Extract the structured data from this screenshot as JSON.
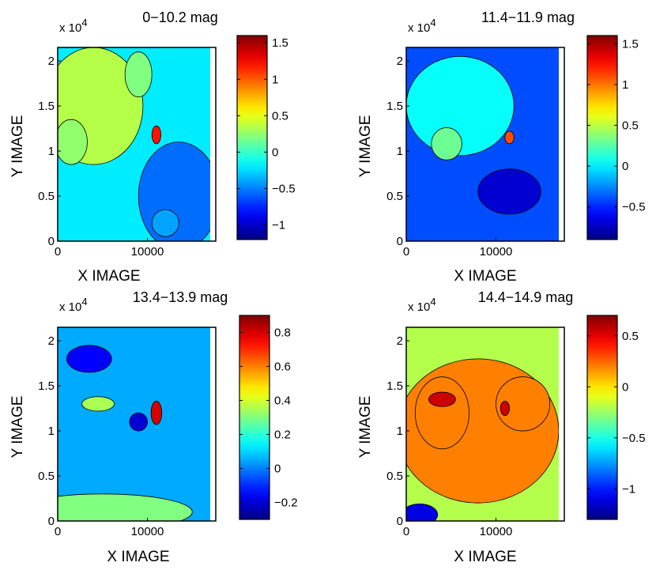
{
  "chart_data": [
    {
      "type": "heatmap",
      "plot_style": "filled-contour",
      "title": "0−10.2 mag",
      "xlabel": "X IMAGE",
      "ylabel": "Y IMAGE",
      "xlim": [
        0,
        17000
      ],
      "ylim": [
        0,
        21500
      ],
      "xticks": [
        "0",
        "10000"
      ],
      "yticks": [
        "0",
        "0.5",
        "1",
        "1.5",
        "2"
      ],
      "y_exponent_base": "x 10",
      "y_exponent_power": "4",
      "colorbar_range": [
        -1.2,
        1.6
      ],
      "colorbar_ticks": [
        "1.5",
        "1",
        "0.5",
        "0",
        "−0.5",
        "−1"
      ],
      "colorbar_tick_values": [
        1.5,
        1,
        0.5,
        0,
        -0.5,
        -1
      ],
      "background_value": -0.2,
      "features": [
        {
          "x": 4000,
          "y": 15000,
          "rx": 5500,
          "ry": 6500,
          "value": 0.35
        },
        {
          "x": 1500,
          "y": 11000,
          "rx": 1800,
          "ry": 2500,
          "value": 0.25
        },
        {
          "x": 9000,
          "y": 18500,
          "rx": 1500,
          "ry": 2500,
          "value": 0.2
        },
        {
          "x": 13500,
          "y": 5000,
          "rx": 4500,
          "ry": 6000,
          "value": -0.55
        },
        {
          "x": 12000,
          "y": 2000,
          "rx": 1500,
          "ry": 1500,
          "value": -0.4
        },
        {
          "x": 11000,
          "y": 11800,
          "rx": 500,
          "ry": 1000,
          "value": 1.2
        }
      ]
    },
    {
      "type": "heatmap",
      "plot_style": "filled-contour",
      "title": "11.4−11.9 mag",
      "xlabel": "X IMAGE",
      "ylabel": "Y IMAGE",
      "xlim": [
        0,
        17000
      ],
      "ylim": [
        0,
        21500
      ],
      "xticks": [
        "0",
        "10000"
      ],
      "yticks": [
        "0",
        "0.5",
        "1",
        "1.5",
        "2"
      ],
      "y_exponent_base": "x 10",
      "y_exponent_power": "4",
      "colorbar_range": [
        -0.9,
        1.6
      ],
      "colorbar_ticks": [
        "1.5",
        "1",
        "0.5",
        "0",
        "−0.5"
      ],
      "colorbar_tick_values": [
        1.5,
        1,
        0.5,
        0,
        -0.5
      ],
      "background_value": -0.4,
      "features": [
        {
          "x": 6000,
          "y": 15000,
          "rx": 6000,
          "ry": 5500,
          "value": 0.05
        },
        {
          "x": 4500,
          "y": 10800,
          "rx": 1700,
          "ry": 1800,
          "value": 0.3
        },
        {
          "x": 11500,
          "y": 5500,
          "rx": 3500,
          "ry": 2500,
          "value": -0.7
        },
        {
          "x": 11500,
          "y": 11500,
          "rx": 500,
          "ry": 700,
          "value": 1.1
        }
      ]
    },
    {
      "type": "heatmap",
      "plot_style": "filled-contour",
      "title": "13.4−13.9 mag",
      "xlabel": "X IMAGE",
      "ylabel": "Y IMAGE",
      "xlim": [
        0,
        17000
      ],
      "ylim": [
        0,
        21500
      ],
      "xticks": [
        "0",
        "10000"
      ],
      "yticks": [
        "0",
        "0.5",
        "1",
        "1.5",
        "2"
      ],
      "y_exponent_base": "x 10",
      "y_exponent_power": "4",
      "colorbar_range": [
        -0.3,
        0.9
      ],
      "colorbar_ticks": [
        "0.8",
        "0.6",
        "0.4",
        "0.2",
        "0",
        "−0.2"
      ],
      "colorbar_tick_values": [
        0.8,
        0.6,
        0.4,
        0.2,
        0,
        -0.2
      ],
      "background_value": 0.05,
      "features": [
        {
          "x": 5000,
          "y": 1000,
          "rx": 10000,
          "ry": 2000,
          "value": 0.3
        },
        {
          "x": 4500,
          "y": 13000,
          "rx": 1800,
          "ry": 800,
          "value": 0.35
        },
        {
          "x": 3500,
          "y": 18000,
          "rx": 2500,
          "ry": 1500,
          "value": -0.15
        },
        {
          "x": 9000,
          "y": 11000,
          "rx": 1000,
          "ry": 1000,
          "value": -0.2
        },
        {
          "x": 11000,
          "y": 12000,
          "rx": 600,
          "ry": 1300,
          "value": 0.8
        }
      ]
    },
    {
      "type": "heatmap",
      "plot_style": "filled-contour",
      "title": "14.4−14.9 mag",
      "xlabel": "X IMAGE",
      "ylabel": "Y IMAGE",
      "xlim": [
        0,
        17000
      ],
      "ylim": [
        0,
        21500
      ],
      "xticks": [
        "0",
        "10000"
      ],
      "yticks": [
        "0",
        "0.5",
        "1",
        "1.5",
        "2"
      ],
      "y_exponent_base": "x 10",
      "y_exponent_power": "4",
      "colorbar_range": [
        -1.3,
        0.7
      ],
      "colorbar_ticks": [
        "0.5",
        "0",
        "−0.5",
        "−1"
      ],
      "colorbar_tick_values": [
        0.5,
        0,
        -0.5,
        -1
      ],
      "background_value": -0.2,
      "features": [
        {
          "x": 8000,
          "y": 10000,
          "rx": 9000,
          "ry": 8000,
          "value": 0.2
        },
        {
          "x": 4000,
          "y": 12000,
          "rx": 3000,
          "ry": 4000,
          "value": 0.2
        },
        {
          "x": 13000,
          "y": 13000,
          "rx": 3000,
          "ry": 3000,
          "value": 0.2
        },
        {
          "x": 4000,
          "y": 13500,
          "rx": 1500,
          "ry": 800,
          "value": 0.55
        },
        {
          "x": 11000,
          "y": 12500,
          "rx": 500,
          "ry": 800,
          "value": 0.55
        },
        {
          "x": 1500,
          "y": 700,
          "rx": 2000,
          "ry": 1200,
          "value": -1.1
        }
      ]
    }
  ]
}
